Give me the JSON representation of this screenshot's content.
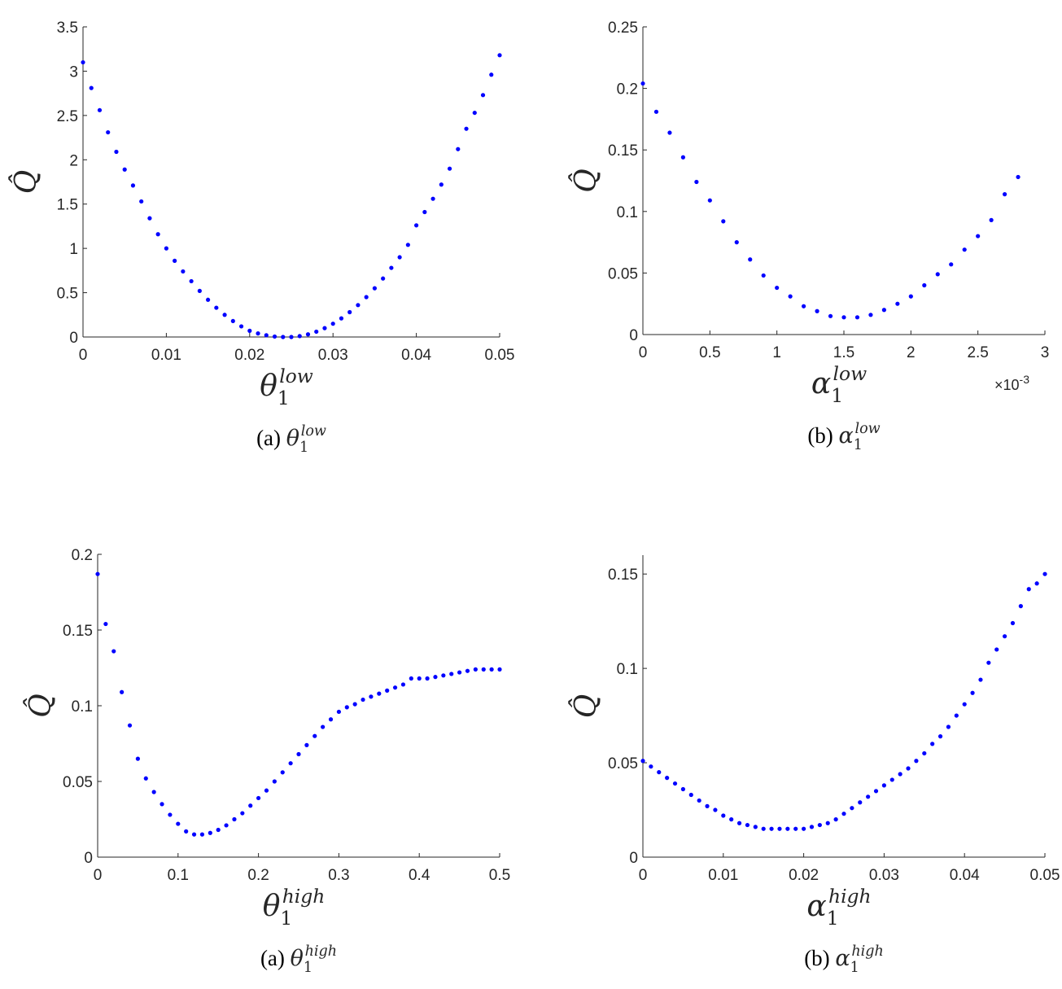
{
  "chart_data": [
    {
      "type": "scatter",
      "color": "#0000ff",
      "x": [
        0,
        0.001,
        0.002,
        0.003,
        0.004,
        0.005,
        0.006,
        0.007,
        0.008,
        0.009,
        0.01,
        0.011,
        0.012,
        0.013,
        0.014,
        0.015,
        0.016,
        0.017,
        0.018,
        0.019,
        0.02,
        0.021,
        0.022,
        0.023,
        0.024,
        0.025,
        0.026,
        0.027,
        0.028,
        0.029,
        0.03,
        0.031,
        0.032,
        0.033,
        0.034,
        0.035,
        0.036,
        0.037,
        0.038,
        0.039,
        0.04,
        0.041,
        0.042,
        0.043,
        0.044,
        0.045,
        0.046,
        0.047,
        0.048,
        0.049,
        0.05
      ],
      "values": [
        3.1,
        2.81,
        2.56,
        2.31,
        2.09,
        1.89,
        1.71,
        1.53,
        1.34,
        1.16,
        1.0,
        0.86,
        0.74,
        0.63,
        0.52,
        0.42,
        0.33,
        0.25,
        0.18,
        0.12,
        0.07,
        0.04,
        0.02,
        0.005,
        0.0,
        0.0,
        0.01,
        0.03,
        0.06,
        0.1,
        0.15,
        0.21,
        0.28,
        0.36,
        0.45,
        0.55,
        0.66,
        0.78,
        0.9,
        1.04,
        1.26,
        1.41,
        1.56,
        1.72,
        1.9,
        2.12,
        2.35,
        2.53,
        2.73,
        2.96,
        3.18
      ],
      "xlim": [
        0,
        0.05
      ],
      "xticks": [
        0,
        0.01,
        0.02,
        0.03,
        0.04,
        0.05
      ],
      "ylim": [
        0,
        3.5
      ],
      "yticks": [
        0,
        0.5,
        1,
        1.5,
        2,
        2.5,
        3,
        3.5
      ],
      "ylabel": "Q̂",
      "xlabel": {
        "base": "θ",
        "sub": "1",
        "sup": "low"
      },
      "caption": {
        "prefix": "(a)",
        "base": "θ",
        "sub": "1",
        "sup": "low"
      }
    },
    {
      "type": "scatter",
      "color": "#0000ff",
      "x": [
        0,
        0.1,
        0.2,
        0.3,
        0.4,
        0.5,
        0.6,
        0.7,
        0.8,
        0.9,
        1.0,
        1.1,
        1.2,
        1.3,
        1.4,
        1.5,
        1.6,
        1.7,
        1.8,
        1.9,
        2.0,
        2.1,
        2.2,
        2.3,
        2.4,
        2.5,
        2.6,
        2.7,
        2.8
      ],
      "values": [
        0.204,
        0.181,
        0.164,
        0.144,
        0.124,
        0.109,
        0.092,
        0.075,
        0.061,
        0.048,
        0.038,
        0.031,
        0.023,
        0.019,
        0.015,
        0.014,
        0.014,
        0.016,
        0.02,
        0.025,
        0.031,
        0.04,
        0.049,
        0.057,
        0.069,
        0.08,
        0.093,
        0.114,
        0.128
      ],
      "xlim": [
        0,
        3
      ],
      "xticks": [
        0,
        0.5,
        1,
        1.5,
        2,
        2.5,
        3
      ],
      "ylim": [
        0,
        0.25
      ],
      "yticks": [
        0,
        0.05,
        0.1,
        0.15,
        0.2,
        0.25
      ],
      "x_exponent": {
        "base": "×10",
        "exp": "-3"
      },
      "ylabel": "Q̂",
      "xlabel": {
        "base": "α",
        "sub": "1",
        "sup": "low"
      },
      "caption": {
        "prefix": "(b)",
        "base": "α",
        "sub": "1",
        "sup": "low"
      }
    },
    {
      "type": "scatter",
      "color": "#0000ff",
      "x": [
        0,
        0.01,
        0.02,
        0.03,
        0.04,
        0.05,
        0.06,
        0.07,
        0.08,
        0.09,
        0.1,
        0.11,
        0.12,
        0.13,
        0.14,
        0.15,
        0.16,
        0.17,
        0.18,
        0.19,
        0.2,
        0.21,
        0.22,
        0.23,
        0.24,
        0.25,
        0.26,
        0.27,
        0.28,
        0.29,
        0.3,
        0.31,
        0.32,
        0.33,
        0.34,
        0.35,
        0.36,
        0.37,
        0.38,
        0.39,
        0.4,
        0.41,
        0.42,
        0.43,
        0.44,
        0.45,
        0.46,
        0.47,
        0.48,
        0.49,
        0.5
      ],
      "values": [
        0.187,
        0.154,
        0.136,
        0.109,
        0.087,
        0.065,
        0.052,
        0.043,
        0.035,
        0.028,
        0.022,
        0.017,
        0.015,
        0.015,
        0.016,
        0.018,
        0.021,
        0.025,
        0.029,
        0.034,
        0.039,
        0.044,
        0.05,
        0.056,
        0.062,
        0.068,
        0.074,
        0.08,
        0.086,
        0.091,
        0.096,
        0.099,
        0.101,
        0.104,
        0.106,
        0.108,
        0.11,
        0.112,
        0.114,
        0.118,
        0.118,
        0.118,
        0.119,
        0.12,
        0.121,
        0.122,
        0.123,
        0.124,
        0.124,
        0.124,
        0.124
      ],
      "xlim": [
        0,
        0.5
      ],
      "xticks": [
        0,
        0.1,
        0.2,
        0.3,
        0.4,
        0.5
      ],
      "ylim": [
        0,
        0.2
      ],
      "yticks": [
        0,
        0.05,
        0.1,
        0.15,
        0.2
      ],
      "ylabel": "Q̂",
      "xlabel": {
        "base": "θ",
        "sub": "1",
        "sup": "high"
      },
      "caption": {
        "prefix": "(a)",
        "base": "θ",
        "sub": "1",
        "sup": "high"
      }
    },
    {
      "type": "scatter",
      "color": "#0000ff",
      "x": [
        0,
        0.001,
        0.002,
        0.003,
        0.004,
        0.005,
        0.006,
        0.007,
        0.008,
        0.009,
        0.01,
        0.011,
        0.012,
        0.013,
        0.014,
        0.015,
        0.016,
        0.017,
        0.018,
        0.019,
        0.02,
        0.021,
        0.022,
        0.023,
        0.024,
        0.025,
        0.026,
        0.027,
        0.028,
        0.029,
        0.03,
        0.031,
        0.032,
        0.033,
        0.034,
        0.035,
        0.036,
        0.037,
        0.038,
        0.039,
        0.04,
        0.041,
        0.042,
        0.043,
        0.044,
        0.045,
        0.046,
        0.047,
        0.048,
        0.049,
        0.05
      ],
      "values": [
        0.051,
        0.048,
        0.045,
        0.042,
        0.039,
        0.036,
        0.033,
        0.03,
        0.027,
        0.025,
        0.022,
        0.02,
        0.018,
        0.017,
        0.016,
        0.015,
        0.015,
        0.015,
        0.015,
        0.015,
        0.015,
        0.016,
        0.017,
        0.018,
        0.02,
        0.023,
        0.026,
        0.029,
        0.032,
        0.035,
        0.038,
        0.041,
        0.044,
        0.047,
        0.051,
        0.055,
        0.06,
        0.064,
        0.069,
        0.075,
        0.081,
        0.087,
        0.094,
        0.103,
        0.11,
        0.117,
        0.124,
        0.133,
        0.142,
        0.145,
        0.15
      ],
      "xlim": [
        0,
        0.05
      ],
      "xticks": [
        0,
        0.01,
        0.02,
        0.03,
        0.04,
        0.05
      ],
      "ylim": [
        0,
        0.16
      ],
      "yticks": [
        0,
        0.05,
        0.1,
        0.15
      ],
      "ylabel": "Q̂",
      "xlabel": {
        "base": "α",
        "sub": "1",
        "sup": "high"
      },
      "caption": {
        "prefix": "(b)",
        "base": "α",
        "sub": "1",
        "sup": "high"
      }
    }
  ]
}
